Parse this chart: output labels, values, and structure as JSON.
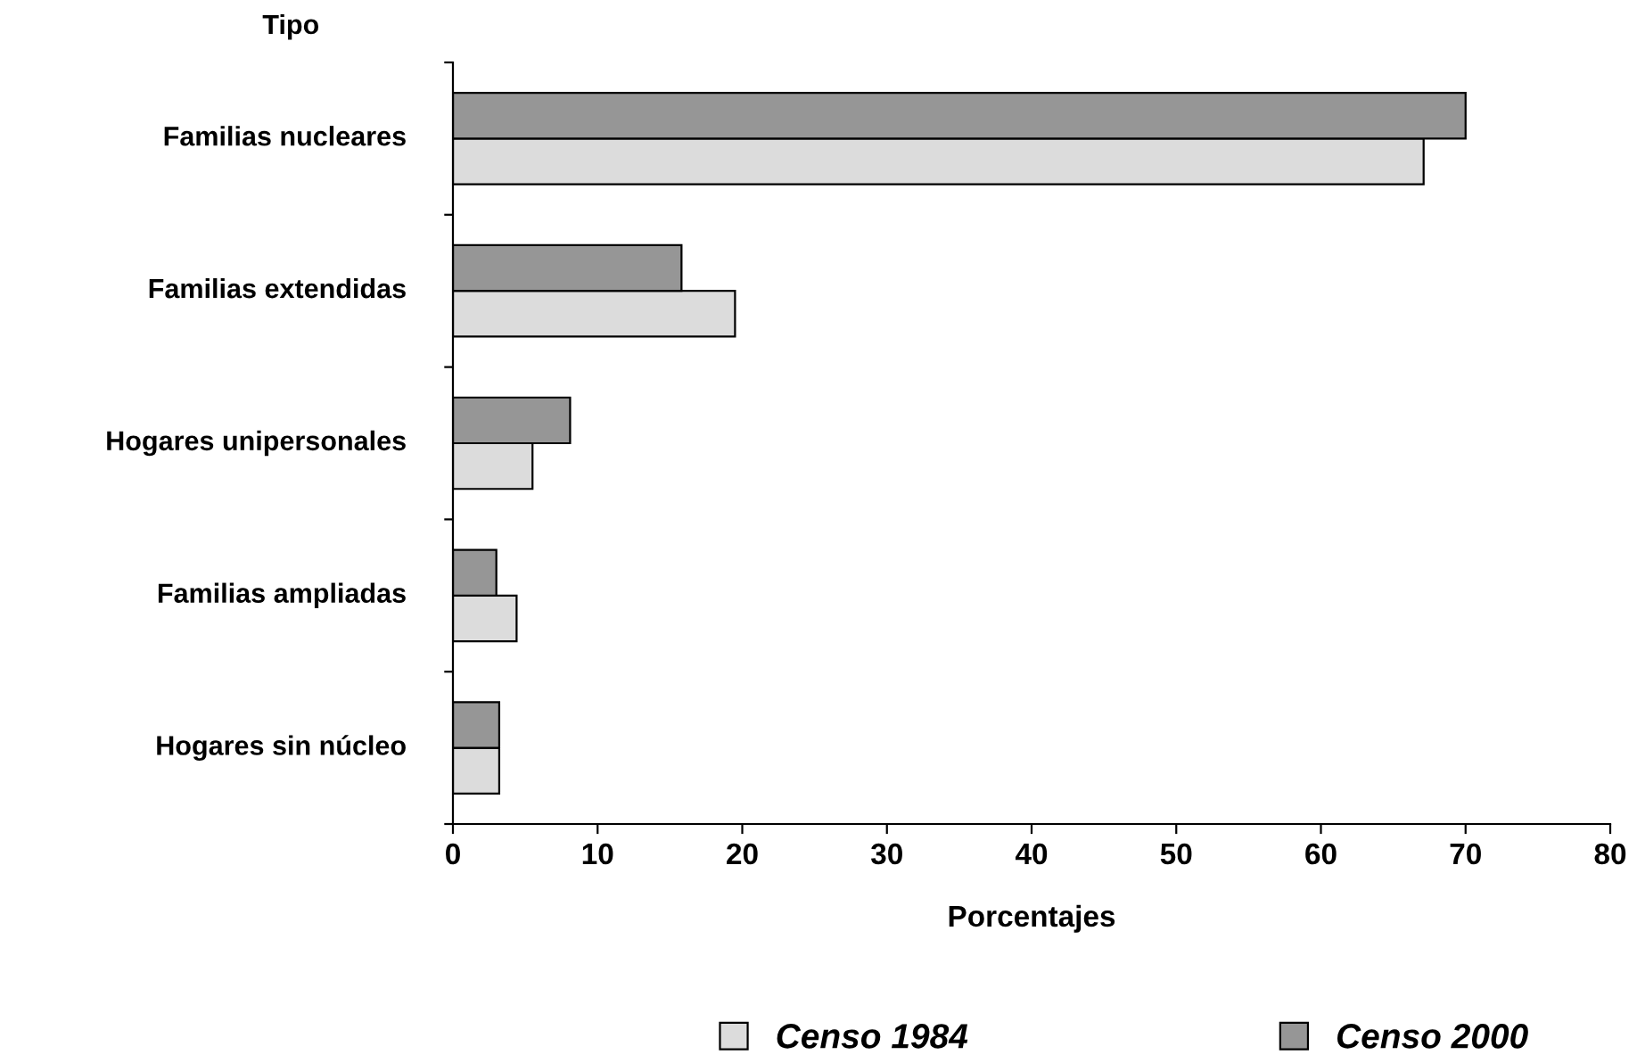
{
  "chart_data": {
    "type": "bar",
    "orientation": "horizontal",
    "ylabel": "Tipo",
    "xlabel": "Porcentajes",
    "categories": [
      "Familias nucleares",
      "Familias extendidas",
      "Hogares unipersonales",
      "Familias ampliadas",
      "Hogares sin núcleo"
    ],
    "series": [
      {
        "name": "Censo 1984",
        "color": "#dcdcdc",
        "values": [
          67.1,
          19.5,
          5.5,
          4.4,
          3.2
        ]
      },
      {
        "name": "Censo 2000",
        "color": "#969696",
        "values": [
          70.0,
          15.8,
          8.1,
          3.0,
          3.2
        ]
      }
    ],
    "xlim": [
      0,
      80
    ],
    "xticks": [
      0,
      10,
      20,
      30,
      40,
      50,
      60,
      70,
      80
    ],
    "grid": false,
    "legend": "bottom"
  }
}
